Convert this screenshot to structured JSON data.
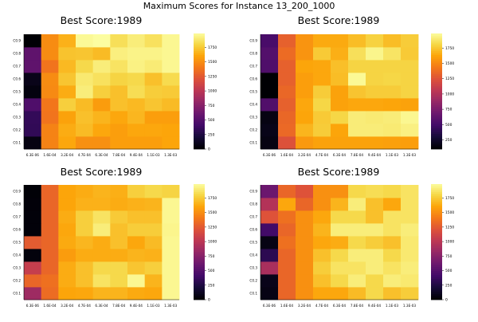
{
  "suptitle": "Maximum Scores for Instance 13_200_1000",
  "colormap": "inferno",
  "chart_data": [
    {
      "type": "heatmap",
      "title": "Best Score:1989",
      "x": [
        "6.3E-06",
        "1.6E-04",
        "3.2E-04",
        "4.7E-04",
        "6.3E-04",
        "7.8E-04",
        "9.4E-04",
        "1.1E-03",
        "1.3E-03"
      ],
      "y": [
        "C0.1",
        "C0.2",
        "C0.3",
        "C0.4",
        "C0.5",
        "C0.6",
        "C0.7",
        "C0.8",
        "C0.9"
      ],
      "z": [
        [
          50,
          1440,
          1600,
          1500,
          1500,
          1560,
          1560,
          1560,
          1590
        ],
        [
          320,
          1440,
          1620,
          1680,
          1600,
          1560,
          1600,
          1600,
          1590
        ],
        [
          330,
          1370,
          1580,
          1700,
          1650,
          1600,
          1660,
          1560,
          1560
        ],
        [
          460,
          1380,
          1760,
          1680,
          1550,
          1700,
          1670,
          1720,
          1680
        ],
        [
          40,
          1470,
          1620,
          1900,
          1760,
          1700,
          1820,
          1750,
          1740
        ],
        [
          80,
          1480,
          1720,
          1880,
          1840,
          1780,
          1800,
          1700,
          1810
        ],
        [
          540,
          1370,
          1670,
          1800,
          1900,
          1850,
          1920,
          1890,
          1950
        ],
        [
          540,
          1480,
          1710,
          1720,
          1680,
          1910,
          1930,
          1930,
          1950
        ],
        [
          0,
          1480,
          1640,
          1960,
          1980,
          1830,
          1900,
          1840,
          1950
        ]
      ],
      "colorbar": {
        "ticks": [
          0,
          250,
          500,
          750,
          1000,
          1250,
          1500,
          1750
        ],
        "range": [
          0,
          1989
        ]
      }
    },
    {
      "type": "heatmap",
      "title": "Best Score:1989",
      "x": [
        "6.3E-06",
        "1.6E-04",
        "3.2E-04",
        "4.7E-04",
        "6.3E-04",
        "7.8E-04",
        "9.4E-04",
        "1.1E-03",
        "1.3E-03"
      ],
      "y": [
        "C0.1",
        "C0.2",
        "C0.3",
        "C0.4",
        "C0.5",
        "C0.6",
        "C0.7",
        "C0.8",
        "C0.9"
      ],
      "z": [
        [
          150,
          1230,
          1560,
          1600,
          1600,
          1600,
          1600,
          1590,
          1580
        ],
        [
          170,
          1350,
          1670,
          1760,
          1610,
          1900,
          1900,
          1890,
          1920
        ],
        [
          150,
          1340,
          1610,
          1750,
          1800,
          1900,
          1890,
          1900,
          1950
        ],
        [
          550,
          1310,
          1620,
          1800,
          1600,
          1620,
          1620,
          1610,
          1600
        ],
        [
          80,
          1340,
          1580,
          1760,
          1600,
          1730,
          1760,
          1760,
          1790
        ],
        [
          60,
          1310,
          1580,
          1620,
          1700,
          1960,
          1790,
          1800,
          1790
        ],
        [
          540,
          1310,
          1610,
          1620,
          1710,
          1790,
          1790,
          1790,
          1790
        ],
        [
          560,
          1360,
          1540,
          1750,
          1650,
          1840,
          1940,
          1860,
          1750
        ],
        [
          510,
          1310,
          1540,
          1630,
          1630,
          1700,
          1780,
          1700,
          1760
        ]
      ],
      "colorbar": {
        "ticks": [
          250,
          500,
          750,
          1000,
          1250,
          1500,
          1750
        ],
        "range": [
          100,
          1989
        ]
      }
    },
    {
      "type": "heatmap",
      "title": "Best Score:1989",
      "x": [
        "6.3E-06",
        "1.6E-04",
        "3.2E-04",
        "4.7E-04",
        "6.3E-04",
        "7.8E-04",
        "9.4E-04",
        "1.1E-03",
        "1.3E-03"
      ],
      "y": [
        "C0.1",
        "C0.2",
        "C0.3",
        "C0.4",
        "C0.5",
        "C0.6",
        "C0.7",
        "C0.8",
        "C0.9"
      ],
      "z": [
        [
          850,
          1330,
          1590,
          1600,
          1650,
          1650,
          1610,
          1600,
          1950
        ],
        [
          1300,
          1350,
          1620,
          1700,
          1850,
          1800,
          1950,
          1650,
          1950
        ],
        [
          1050,
          1300,
          1620,
          1700,
          1800,
          1800,
          1720,
          1760,
          1950
        ],
        [
          30,
          1300,
          1550,
          1620,
          1620,
          1620,
          1650,
          1640,
          1950
        ],
        [
          1250,
          1300,
          1610,
          1660,
          1620,
          1700,
          1600,
          1680,
          1950
        ],
        [
          20,
          1300,
          1600,
          1760,
          1900,
          1700,
          1750,
          1750,
          1940
        ],
        [
          20,
          1300,
          1620,
          1760,
          1850,
          1740,
          1700,
          1700,
          1950
        ],
        [
          20,
          1300,
          1590,
          1640,
          1640,
          1620,
          1640,
          1650,
          1950
        ],
        [
          10,
          1300,
          1590,
          1620,
          1650,
          1630,
          1760,
          1800,
          1780
        ]
      ],
      "colorbar": {
        "ticks": [
          0,
          250,
          500,
          750,
          1000,
          1250,
          1500,
          1750
        ],
        "range": [
          0,
          1989
        ]
      }
    },
    {
      "type": "heatmap",
      "title": "Best Score:1989",
      "x": [
        "6.3E-06",
        "1.6E-04",
        "3.2E-04",
        "4.7E-04",
        "6.3E-04",
        "7.8E-04",
        "9.4E-04",
        "1.1E-03",
        "1.3E-03"
      ],
      "y": [
        "C0.1",
        "C0.2",
        "C0.3",
        "C0.4",
        "C0.5",
        "C0.6",
        "C0.7",
        "C0.8",
        "C0.9"
      ],
      "z": [
        [
          60,
          1300,
          1500,
          1600,
          1600,
          1680,
          1800,
          1700,
          1750
        ],
        [
          80,
          1300,
          1500,
          1700,
          1800,
          1900,
          1800,
          1900,
          1880
        ],
        [
          900,
          1300,
          1500,
          1750,
          1850,
          1850,
          1900,
          1850,
          1900
        ],
        [
          300,
          1300,
          1500,
          1700,
          1800,
          1900,
          1900,
          1800,
          1880
        ],
        [
          60,
          1350,
          1500,
          1600,
          1620,
          1800,
          1750,
          1700,
          1880
        ],
        [
          400,
          1300,
          1500,
          1650,
          1900,
          1900,
          1900,
          1850,
          1900
        ],
        [
          1200,
          1350,
          1500,
          1600,
          1800,
          1800,
          1700,
          1850,
          1850
        ],
        [
          950,
          1600,
          1300,
          1500,
          1650,
          1900,
          1700,
          1600,
          1850
        ],
        [
          600,
          1300,
          1200,
          1500,
          1500,
          1800,
          1820,
          1800,
          1850
        ]
      ],
      "colorbar": {
        "ticks": [
          0,
          250,
          500,
          750,
          1000,
          1250,
          1500,
          1750
        ],
        "range": [
          0,
          1989
        ]
      }
    }
  ]
}
